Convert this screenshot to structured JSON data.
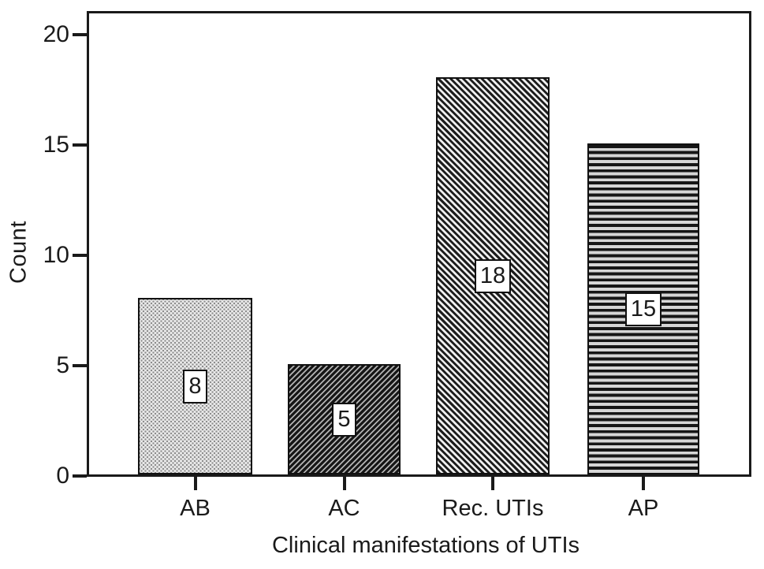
{
  "chart_data": {
    "type": "bar",
    "title": "",
    "categories": [
      "AB",
      "AC",
      "Rec. UTIs",
      "AP"
    ],
    "values": [
      8,
      5,
      18,
      15
    ],
    "bar_labels": [
      "8",
      "5",
      "18",
      "15"
    ],
    "patterns": [
      "dots",
      "diagonal-up",
      "diagonal-down",
      "horizontal"
    ],
    "xlabel": "Clinical manifestations of UTIs",
    "ylabel": "Count",
    "yticks": [
      0,
      5,
      10,
      15,
      20
    ],
    "ylim": [
      0,
      21.1
    ],
    "grid": false,
    "legend": false,
    "frame": true,
    "colors": {
      "ink": "#1a1a1a",
      "background": "#ffffff",
      "label_box_background": "#ffffff"
    }
  }
}
